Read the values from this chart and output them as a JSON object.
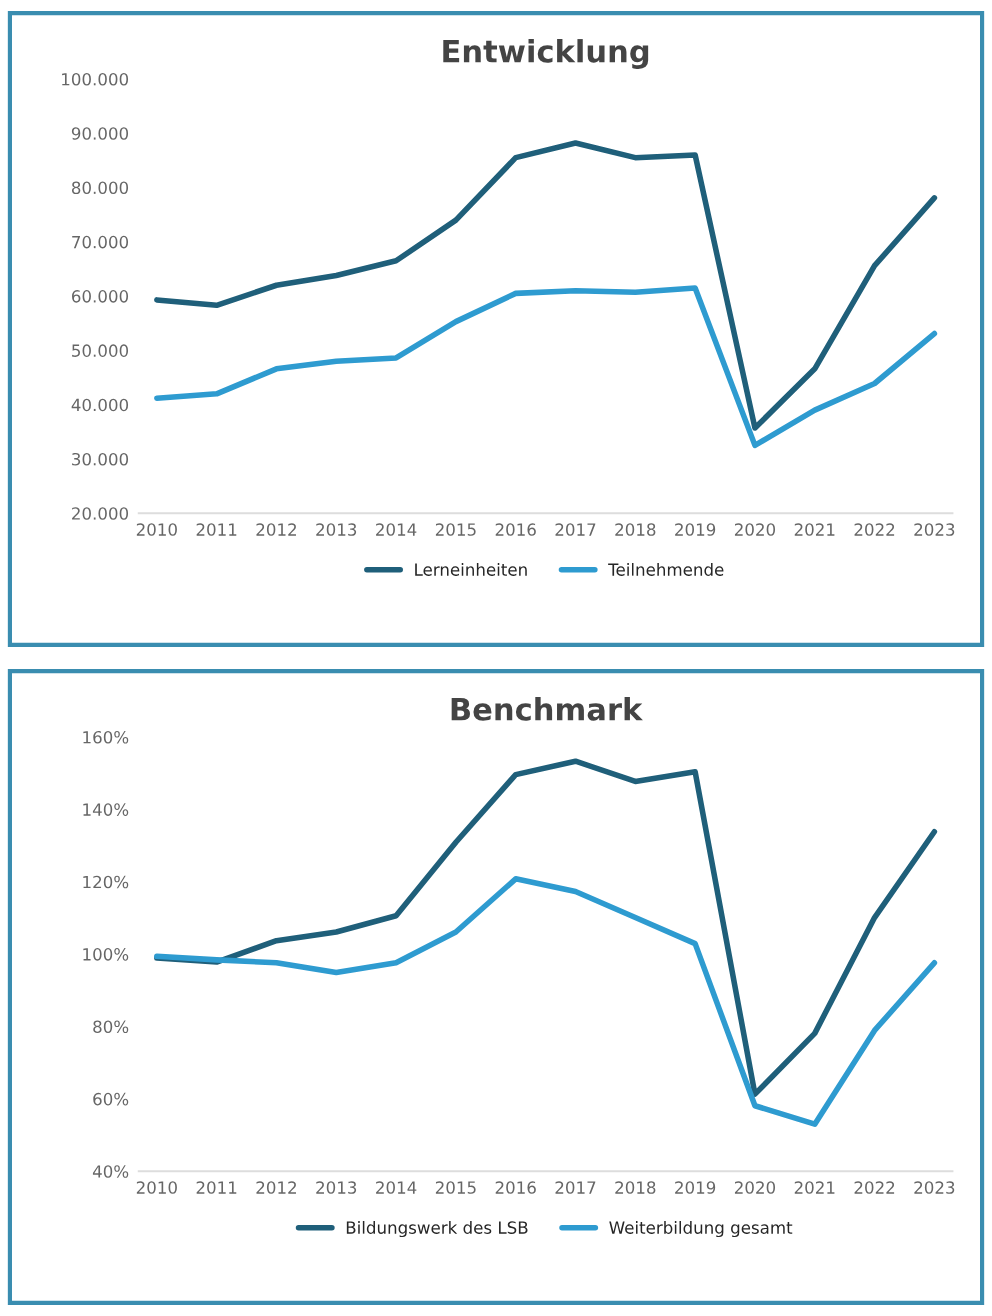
{
  "chart_data": [
    {
      "type": "line",
      "title": "Entwicklung",
      "categories": [
        "2010",
        "2011",
        "2012",
        "2013",
        "2014",
        "2015",
        "2016",
        "2017",
        "2018",
        "2019",
        "2020",
        "2021",
        "2022",
        "2023"
      ],
      "series": [
        {
          "name": "Lerneinheiten",
          "color": "#1f5f7a",
          "values": [
            59300,
            58300,
            62000,
            63800,
            66500,
            74000,
            85500,
            88200,
            85500,
            86000,
            35700,
            46600,
            65600,
            78100
          ]
        },
        {
          "name": "Teilnehmende",
          "color": "#2e9bd0",
          "values": [
            41200,
            42000,
            46600,
            48000,
            48600,
            55300,
            60500,
            61000,
            60700,
            61500,
            32500,
            39000,
            43900,
            53100
          ]
        }
      ],
      "ylim": [
        20000,
        100000
      ],
      "yticks": [
        {
          "value": 20000,
          "label": "20.000"
        },
        {
          "value": 30000,
          "label": "30.000"
        },
        {
          "value": 40000,
          "label": "40.000"
        },
        {
          "value": 50000,
          "label": "50.000"
        },
        {
          "value": 60000,
          "label": "60.000"
        },
        {
          "value": 70000,
          "label": "70.000"
        },
        {
          "value": 80000,
          "label": "80.000"
        },
        {
          "value": 90000,
          "label": "90.000"
        },
        {
          "value": 100000,
          "label": "100.000"
        }
      ],
      "grid": false,
      "legend": "bottom",
      "marker": "none",
      "line_style": "solid"
    },
    {
      "type": "line",
      "title": "Benchmark",
      "categories": [
        "2010",
        "2011",
        "2012",
        "2013",
        "2014",
        "2015",
        "2016",
        "2017",
        "2018",
        "2019",
        "2020",
        "2021",
        "2022",
        "2023"
      ],
      "series": [
        {
          "name": "Bildungswerk des LSB",
          "color": "#1f5f7a",
          "values": [
            98.9,
            97.8,
            103.7,
            106.1,
            110.6,
            130.9,
            149.6,
            153.3,
            147.7,
            150.4,
            61.3,
            78.1,
            110.1,
            133.8
          ]
        },
        {
          "name": "Weiterbildung gesamt",
          "color": "#2e9bd0",
          "values": [
            99.4,
            98.4,
            97.6,
            94.9,
            97.6,
            106.1,
            120.8,
            117.3,
            110.1,
            102.9,
            58.1,
            53.0,
            78.9,
            97.6
          ]
        }
      ],
      "ylim": [
        40,
        160
      ],
      "yticks": [
        {
          "value": 40,
          "label": "40%"
        },
        {
          "value": 60,
          "label": "60%"
        },
        {
          "value": 80,
          "label": "80%"
        },
        {
          "value": 100,
          "label": "100%"
        },
        {
          "value": 120,
          "label": "120%"
        },
        {
          "value": 140,
          "label": "140%"
        },
        {
          "value": 160,
          "label": "160%"
        }
      ],
      "grid": false,
      "legend": "bottom",
      "marker": "none",
      "line_style": "solid"
    }
  ]
}
